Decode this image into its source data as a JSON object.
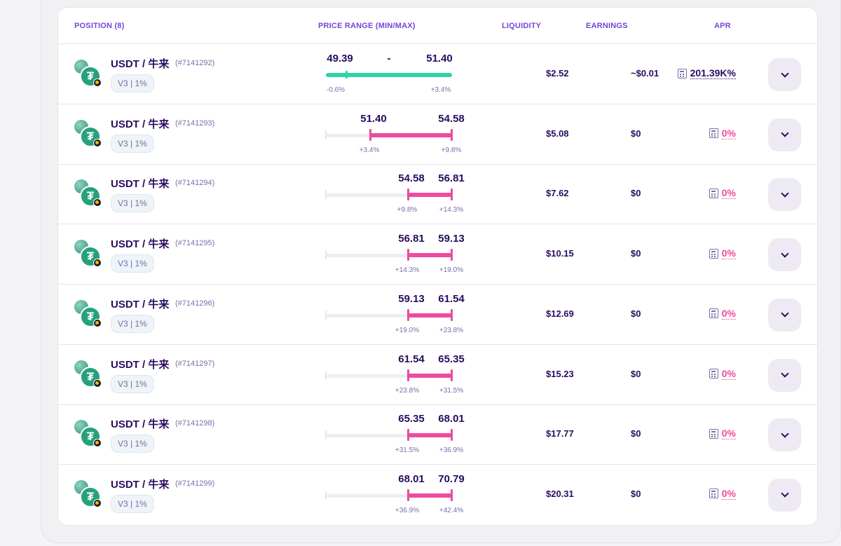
{
  "header": {
    "position": "POSITION (8)",
    "price_range": "PRICE RANGE (MIN/MAX)",
    "liquidity": "LIQUIDITY",
    "earnings": "EARNINGS",
    "apr": "APR"
  },
  "colors": {
    "in_range": "#31d0aa",
    "out_of_range": "#ed4b9e",
    "apr_active": "#280d5f",
    "apr_zero": "#ed4b9e"
  },
  "rows": [
    {
      "pair": "USDT / 牛来",
      "id": "(#7141292)",
      "fee": "V3 | 1%",
      "min": "49.39",
      "max": "51.40",
      "separator": "-",
      "min_pct": "-0.6%",
      "max_pct": "+3.4%",
      "in_range": true,
      "bar_start": 0.0,
      "bar_end": 1.0,
      "current": 0.16,
      "liquidity": "$2.52",
      "earnings": "~$0.01",
      "apr": "201.39K%"
    },
    {
      "pair": "USDT / 牛来",
      "id": "(#7141293)",
      "fee": "V3 | 1%",
      "min": "51.40",
      "max": "54.58",
      "separator": "",
      "min_pct": "+3.4%",
      "max_pct": "+9.8%",
      "in_range": false,
      "bar_start": 0.35,
      "bar_end": 1.0,
      "current": null,
      "liquidity": "$5.08",
      "earnings": "$0",
      "apr": "0%"
    },
    {
      "pair": "USDT / 牛来",
      "id": "(#7141294)",
      "fee": "V3 | 1%",
      "min": "54.58",
      "max": "56.81",
      "separator": "",
      "min_pct": "+9.8%",
      "max_pct": "+14.3%",
      "in_range": false,
      "bar_start": 0.65,
      "bar_end": 1.0,
      "current": null,
      "liquidity": "$7.62",
      "earnings": "$0",
      "apr": "0%"
    },
    {
      "pair": "USDT / 牛来",
      "id": "(#7141295)",
      "fee": "V3 | 1%",
      "min": "56.81",
      "max": "59.13",
      "separator": "",
      "min_pct": "+14.3%",
      "max_pct": "+19.0%",
      "in_range": false,
      "bar_start": 0.65,
      "bar_end": 1.0,
      "current": null,
      "liquidity": "$10.15",
      "earnings": "$0",
      "apr": "0%"
    },
    {
      "pair": "USDT / 牛来",
      "id": "(#7141296)",
      "fee": "V3 | 1%",
      "min": "59.13",
      "max": "61.54",
      "separator": "",
      "min_pct": "+19.0%",
      "max_pct": "+23.8%",
      "in_range": false,
      "bar_start": 0.65,
      "bar_end": 1.0,
      "current": null,
      "liquidity": "$12.69",
      "earnings": "$0",
      "apr": "0%"
    },
    {
      "pair": "USDT / 牛来",
      "id": "(#7141297)",
      "fee": "V3 | 1%",
      "min": "61.54",
      "max": "65.35",
      "separator": "",
      "min_pct": "+23.8%",
      "max_pct": "+31.5%",
      "in_range": false,
      "bar_start": 0.65,
      "bar_end": 1.0,
      "current": null,
      "liquidity": "$15.23",
      "earnings": "$0",
      "apr": "0%"
    },
    {
      "pair": "USDT / 牛来",
      "id": "(#7141298)",
      "fee": "V3 | 1%",
      "min": "65.35",
      "max": "68.01",
      "separator": "",
      "min_pct": "+31.5%",
      "max_pct": "+36.9%",
      "in_range": false,
      "bar_start": 0.65,
      "bar_end": 1.0,
      "current": null,
      "liquidity": "$17.77",
      "earnings": "$0",
      "apr": "0%"
    },
    {
      "pair": "USDT / 牛来",
      "id": "(#7141299)",
      "fee": "V3 | 1%",
      "min": "68.01",
      "max": "70.79",
      "separator": "",
      "min_pct": "+36.9%",
      "max_pct": "+42.4%",
      "in_range": false,
      "bar_start": 0.65,
      "bar_end": 1.0,
      "current": null,
      "liquidity": "$20.31",
      "earnings": "$0",
      "apr": "0%"
    }
  ],
  "icons": {
    "token_back": "bnb-chain-token-icon",
    "token_front": "usdt-token-icon",
    "token_badge": "chain-badge-icon",
    "apr_icon": "calculator-icon",
    "expand_icon": "chevron-down-icon"
  }
}
